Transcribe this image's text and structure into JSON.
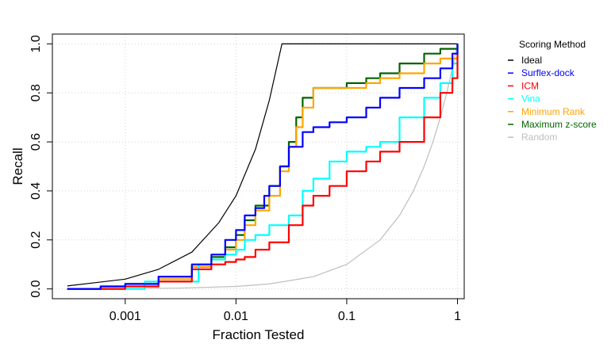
{
  "chart_data": {
    "type": "line",
    "xlabel": "Fraction Tested",
    "ylabel": "Recall",
    "x_scale": "log",
    "xlim": [
      0.00022,
      1.15
    ],
    "ylim": [
      -0.04,
      1.04
    ],
    "x_ticks": [
      0.001,
      0.01,
      0.1,
      1
    ],
    "x_tick_labels": [
      "0.001",
      "0.01",
      "0.1",
      "1"
    ],
    "y_ticks": [
      0.0,
      0.2,
      0.4,
      0.6,
      0.8,
      1.0
    ],
    "y_tick_labels": [
      "0.0",
      "0.2",
      "0.4",
      "0.6",
      "0.8",
      "1.0"
    ],
    "grid": true,
    "legend": {
      "title": "Scoring Method",
      "placement": "right"
    },
    "series": [
      {
        "name": "Ideal",
        "color": "#000000",
        "x": [
          0.0003,
          0.001,
          0.002,
          0.004,
          0.007,
          0.01,
          0.015,
          0.02,
          0.026,
          1.0
        ],
        "y": [
          0.012,
          0.04,
          0.08,
          0.15,
          0.27,
          0.38,
          0.57,
          0.77,
          1.0,
          1.0
        ]
      },
      {
        "name": "Surflex-dock",
        "color": "#0000ff",
        "x": [
          0.0003,
          0.0006,
          0.001,
          0.002,
          0.004,
          0.006,
          0.008,
          0.01,
          0.012,
          0.015,
          0.018,
          0.02,
          0.025,
          0.03,
          0.04,
          0.05,
          0.07,
          0.1,
          0.15,
          0.2,
          0.3,
          0.5,
          0.7,
          0.9,
          1.0
        ],
        "y": [
          0.0,
          0.01,
          0.02,
          0.05,
          0.1,
          0.14,
          0.2,
          0.24,
          0.3,
          0.33,
          0.38,
          0.42,
          0.5,
          0.58,
          0.64,
          0.66,
          0.68,
          0.7,
          0.74,
          0.78,
          0.82,
          0.86,
          0.9,
          0.96,
          1.0
        ]
      },
      {
        "name": "ICM",
        "color": "#ff0000",
        "x": [
          0.0003,
          0.0006,
          0.001,
          0.002,
          0.004,
          0.006,
          0.008,
          0.01,
          0.012,
          0.015,
          0.02,
          0.03,
          0.04,
          0.05,
          0.07,
          0.1,
          0.15,
          0.2,
          0.3,
          0.5,
          0.7,
          0.9,
          1.0
        ],
        "y": [
          0.0,
          0.0,
          0.01,
          0.03,
          0.08,
          0.1,
          0.11,
          0.12,
          0.13,
          0.16,
          0.19,
          0.26,
          0.34,
          0.38,
          0.42,
          0.48,
          0.52,
          0.56,
          0.6,
          0.7,
          0.8,
          0.86,
          0.96
        ]
      },
      {
        "name": "Vina",
        "color": "#00ffff",
        "x": [
          0.0003,
          0.0015,
          0.0045,
          0.0046,
          0.006,
          0.008,
          0.01,
          0.012,
          0.015,
          0.02,
          0.03,
          0.04,
          0.05,
          0.07,
          0.1,
          0.15,
          0.2,
          0.3,
          0.5,
          0.7,
          0.9,
          1.0
        ],
        "y": [
          0.0,
          0.03,
          0.03,
          0.1,
          0.12,
          0.14,
          0.16,
          0.2,
          0.22,
          0.26,
          0.3,
          0.4,
          0.45,
          0.52,
          0.56,
          0.58,
          0.6,
          0.7,
          0.78,
          0.84,
          0.92,
          1.0
        ]
      },
      {
        "name": "Minimum Rank",
        "color": "#ffa500",
        "x": [
          0.0003,
          0.0006,
          0.001,
          0.002,
          0.004,
          0.006,
          0.008,
          0.01,
          0.012,
          0.015,
          0.02,
          0.025,
          0.03,
          0.035,
          0.04,
          0.05,
          0.07,
          0.1,
          0.15,
          0.2,
          0.3,
          0.5,
          0.7,
          1.0
        ],
        "y": [
          0.0,
          0.0,
          0.01,
          0.04,
          0.09,
          0.12,
          0.16,
          0.2,
          0.26,
          0.32,
          0.38,
          0.48,
          0.58,
          0.66,
          0.74,
          0.82,
          0.82,
          0.82,
          0.84,
          0.86,
          0.88,
          0.92,
          0.94,
          1.0
        ]
      },
      {
        "name": "Maximum z-score",
        "color": "#006400",
        "x": [
          0.0003,
          0.0006,
          0.001,
          0.002,
          0.004,
          0.006,
          0.008,
          0.01,
          0.012,
          0.015,
          0.02,
          0.025,
          0.03,
          0.035,
          0.04,
          0.05,
          0.07,
          0.1,
          0.15,
          0.2,
          0.3,
          0.5,
          0.7,
          1.0
        ],
        "y": [
          0.0,
          0.01,
          0.02,
          0.05,
          0.09,
          0.13,
          0.17,
          0.22,
          0.28,
          0.34,
          0.42,
          0.5,
          0.6,
          0.7,
          0.78,
          0.82,
          0.82,
          0.84,
          0.86,
          0.88,
          0.92,
          0.96,
          0.98,
          1.0
        ]
      },
      {
        "name": "Random",
        "color": "#bebebe",
        "x": [
          0.0003,
          0.001,
          0.003,
          0.01,
          0.02,
          0.05,
          0.1,
          0.2,
          0.3,
          0.4,
          0.5,
          0.6,
          0.7,
          0.8,
          0.9,
          1.0
        ],
        "y": [
          0.0003,
          0.001,
          0.003,
          0.01,
          0.02,
          0.05,
          0.1,
          0.2,
          0.3,
          0.4,
          0.5,
          0.6,
          0.7,
          0.8,
          0.9,
          1.0
        ]
      }
    ]
  }
}
